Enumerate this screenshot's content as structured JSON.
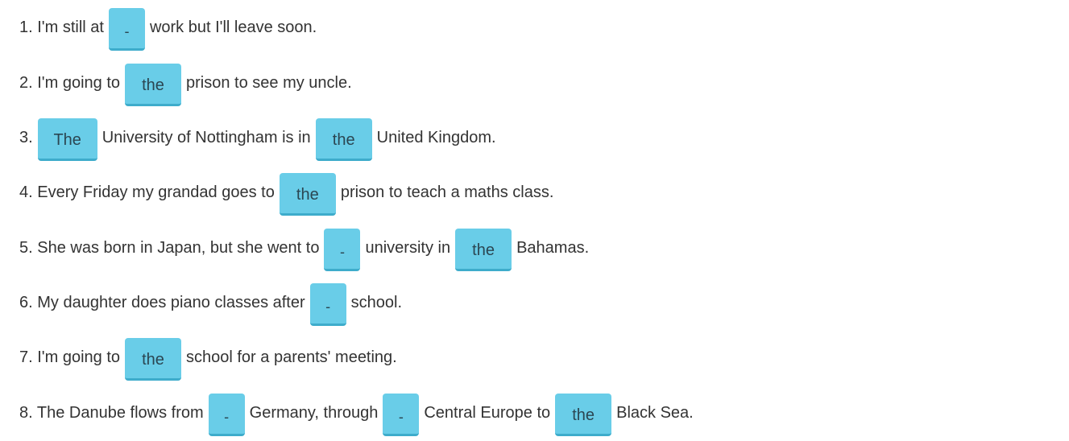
{
  "colors": {
    "blank_fill": "#69cde8",
    "blank_shadow": "#3eaccb",
    "text": "#333333",
    "background": "#ffffff"
  },
  "sentences": [
    {
      "parts": [
        "1. I'm still at",
        "-",
        "work but I'll leave soon."
      ]
    },
    {
      "parts": [
        "2. I'm going to",
        "the",
        "prison to see my uncle."
      ]
    },
    {
      "parts": [
        "3.",
        "The",
        "University of Nottingham is in",
        "the",
        "United Kingdom."
      ]
    },
    {
      "parts": [
        "4. Every Friday my grandad goes to",
        "the",
        "prison to teach a maths class."
      ]
    },
    {
      "parts": [
        "5. She was born in Japan, but she went to",
        "-",
        "university in",
        "the",
        "Bahamas."
      ]
    },
    {
      "parts": [
        "6. My daughter does piano classes after",
        "-",
        "school."
      ]
    },
    {
      "parts": [
        "7. I'm going to",
        "the",
        "school for a parents' meeting."
      ]
    },
    {
      "parts": [
        "8. The Danube flows from",
        "-",
        "Germany, through",
        "-",
        "Central Europe to",
        "the",
        "Black Sea."
      ]
    }
  ]
}
